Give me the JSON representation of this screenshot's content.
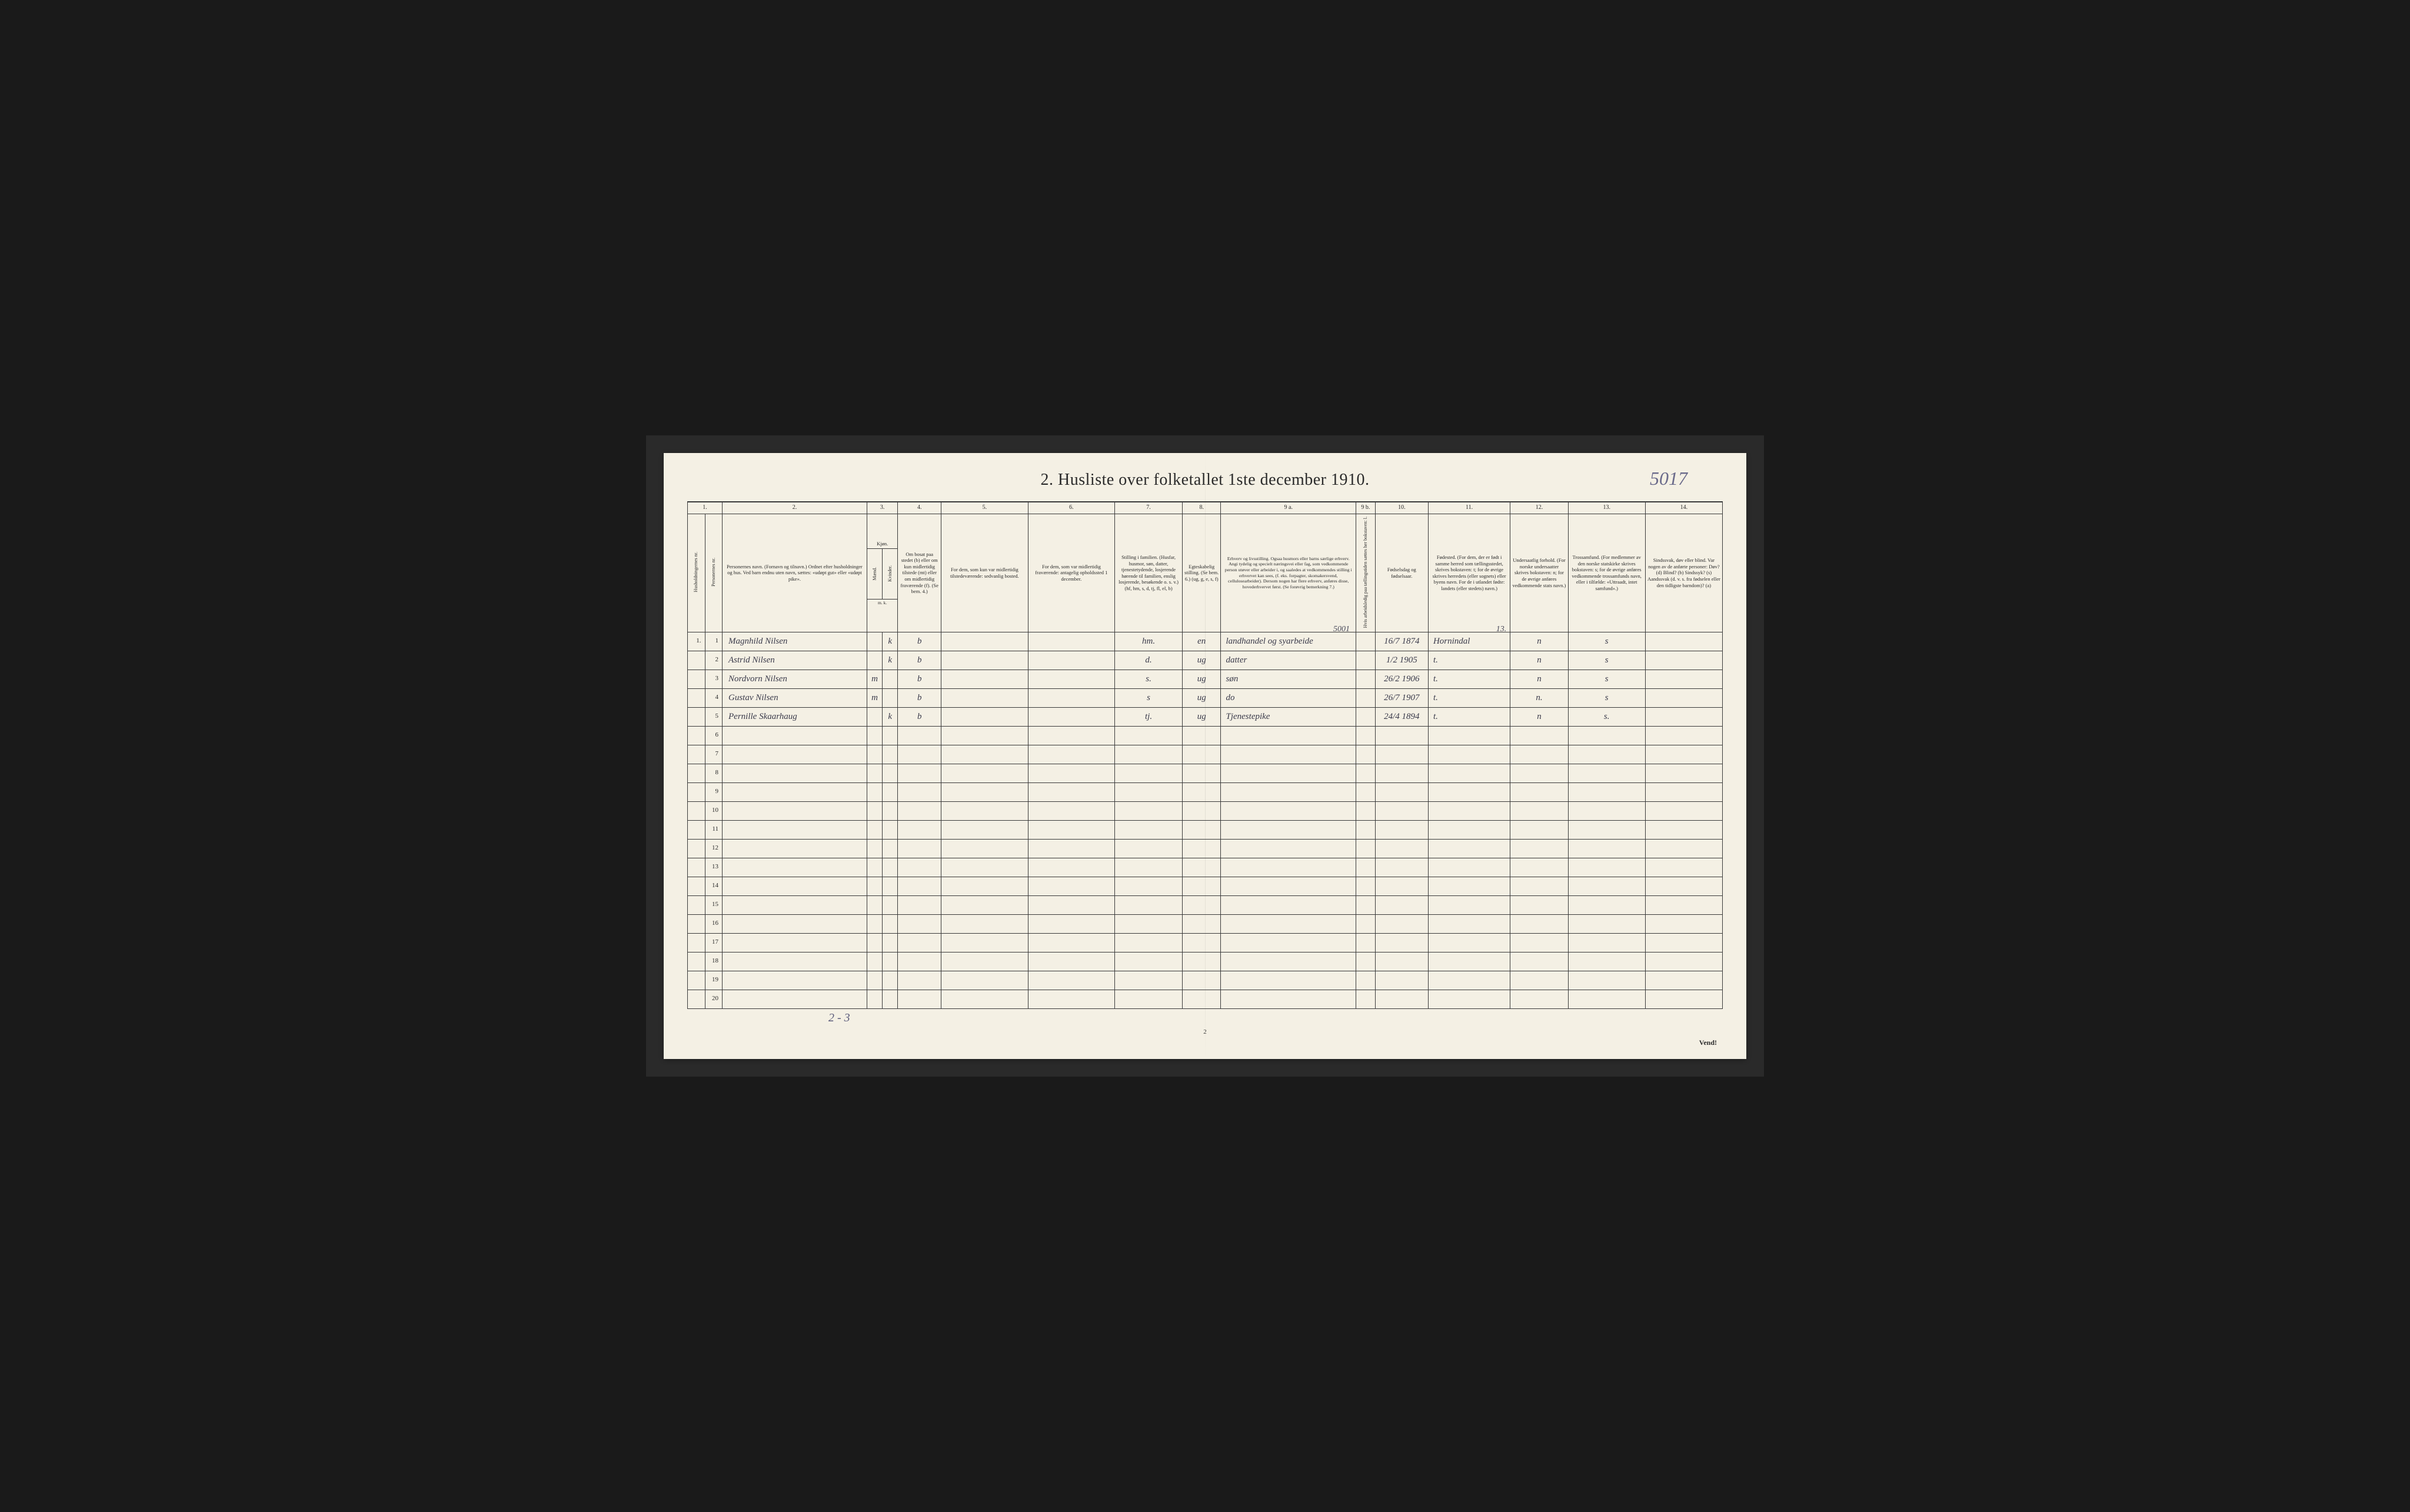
{
  "title": "2.  Husliste over folketallet 1ste december 1910.",
  "handwritten_page_number": "5017",
  "footer_page_number": "2",
  "footer_annotation": "2 - 3",
  "vend_text": "Vend!",
  "col_numbers": [
    "1.",
    "2.",
    "3.",
    "4.",
    "5.",
    "6.",
    "7.",
    "8.",
    "9 a.",
    "9 b.",
    "10.",
    "11.",
    "12.",
    "13.",
    "14."
  ],
  "headers": {
    "c1a": "Husholdningernes nr.",
    "c1b": "Personernes nr.",
    "c2": "Personernes navn.\n(Fornavn og tilnavn.)\nOrdnet efter husholdninger og hus.\nVed barn endnu uten navn, sættes: «udøpt gut» eller «udøpt pike».",
    "c3": "Kjøn.",
    "c3a": "Mænd.",
    "c3b": "Kvinder.",
    "c3sub": "m.  k.",
    "c4": "Om bosat paa stedet (b) eller om kun midlertidig tilstede (mt) eller om midlertidig fraværende (f). (Se bem. 4.)",
    "c5": "For dem, som kun var midlertidig tilstedeværende:\nsedvanlig bosted.",
    "c6": "For dem, som var midlertidig fraværende:\nantagelig opholdssted 1 december.",
    "c7": "Stilling i familien.\n(Husfar, husmor, søn, datter, tjenestetydende, losjerende hørende til familien, enslig losjerende, besøkende o. s. v.)\n(hf, hm, s, d, tj, fl, el, b)",
    "c8": "Egteskabelig stilling.\n(Se bem. 6.)\n(ug, g, e, s, f)",
    "c9a": "Erhverv og livsstilling.\nOgsaa husmors eller barns særlige erhverv.\nAngi tydelig og specielt næringsvei eller fag, som vedkommende person utøver eller arbeider i, og saaledes at vedkommendes stilling i erhvervet kan sees, (f. eks. forpagter, skomakersvend, cellulosearbeider). Dersom nogen har flere erhverv, anføres disse, hovederhvervet først.\n(Se forøvrig bemerkning 7.)",
    "c9b": "Hvis arbeidsledig paa tællingstiden sættes her bokstaven: l.",
    "c10": "Fødselsdag og fødselsaar.",
    "c11": "Fødested.\n(For dem, der er født i samme herred som tællingsstedet, skrives bokstaven: t; for de øvrige skrives herredets (eller sognets) eller byens navn. For de i utlandet fødte: landets (eller stedets) navn.)",
    "c12": "Undersaatlig forhold.\n(For norske undersaatter skrives bokstaven: n; for de øvrige anføres vedkommende stats navn.)",
    "c13": "Trossamfund.\n(For medlemmer av den norske statskirke skrives bokstaven: s; for de øvrige anføres vedkommende trossamfunds navn, eller i tilfælde: «Uttraadt, intet samfund».)",
    "c14": "Sindssvak, døv eller blind.\nVar nogen av de anførte personer:\nDøv? (d)\nBlind? (b)\nSindssyk? (s)\nAandssvak (d. v. s. fra fødselen eller den tidligste barndom)? (a)"
  },
  "occupation_note": "5001",
  "birthplace_note": "13.",
  "rows": [
    {
      "n": 1,
      "hh": "1.",
      "pn": "1",
      "name": "Magnhild Nilsen",
      "m": "",
      "k": "k",
      "b": "b",
      "c5": "",
      "c6": "",
      "c7": "hm.",
      "c8": "en",
      "c9a": "landhandel og syarbeide",
      "c9b": "",
      "c10": "16/7 1874",
      "c11": "Hornindal",
      "c12": "n",
      "c13": "s",
      "c14": ""
    },
    {
      "n": 2,
      "hh": "",
      "pn": "2",
      "name": "Astrid   Nilsen",
      "m": "",
      "k": "k",
      "b": "b",
      "c5": "",
      "c6": "",
      "c7": "d.",
      "c8": "ug",
      "c9a": "datter",
      "c9b": "",
      "c10": "1/2 1905",
      "c11": "t.",
      "c12": "n",
      "c13": "s",
      "c14": ""
    },
    {
      "n": 3,
      "hh": "",
      "pn": "3",
      "name": "Nordvorn  Nilsen",
      "m": "m",
      "k": "",
      "b": "b",
      "c5": "",
      "c6": "",
      "c7": "s.",
      "c8": "ug",
      "c9a": "søn",
      "c9b": "",
      "c10": "26/2 1906",
      "c11": "t.",
      "c12": "n",
      "c13": "s",
      "c14": ""
    },
    {
      "n": 4,
      "hh": "",
      "pn": "4",
      "name": "Gustav   Nilsen",
      "m": "m",
      "k": "",
      "b": "b",
      "c5": "",
      "c6": "",
      "c7": "s",
      "c8": "ug",
      "c9a": "do",
      "c9b": "",
      "c10": "26/7 1907",
      "c11": "t.",
      "c12": "n.",
      "c13": "s",
      "c14": ""
    },
    {
      "n": 5,
      "hh": "",
      "pn": "5",
      "name": "Pernille  Skaarhaug",
      "m": "",
      "k": "k",
      "b": "b",
      "c5": "",
      "c6": "",
      "c7": "tj.",
      "c8": "ug",
      "c9a": "Tjenestepike",
      "c9b": "",
      "c10": "24/4 1894",
      "c11": "t.",
      "c12": "n",
      "c13": "s.",
      "c14": ""
    }
  ],
  "empty_rows": [
    6,
    7,
    8,
    9,
    10,
    11,
    12,
    13,
    14,
    15,
    16,
    17,
    18,
    19,
    20
  ],
  "col_widths_pct": [
    1.8,
    1.8,
    15,
    1.6,
    1.6,
    4.5,
    9,
    9,
    7,
    4,
    14,
    2,
    5.5,
    8.5,
    6,
    8,
    8
  ],
  "colors": {
    "page_bg": "#f4f0e4",
    "frame_bg": "#1a1a1a",
    "border": "#3a3a3a",
    "print_text": "#2a2a2a",
    "handwriting": "#3a3a4a",
    "pencil": "#5a5a7a"
  }
}
